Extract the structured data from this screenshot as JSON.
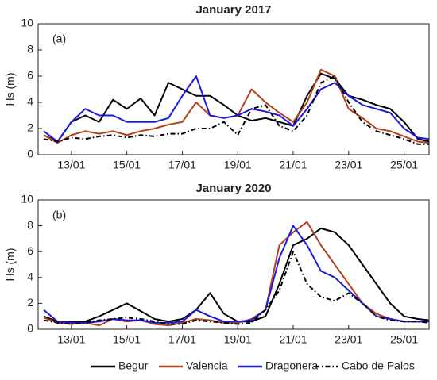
{
  "chart_data": [
    {
      "type": "line",
      "title": "January 2017",
      "annotation": "(a)",
      "y_label": "Hs (m)",
      "x": [
        12,
        12.5,
        13,
        13.5,
        14,
        14.5,
        15,
        15.5,
        16,
        16.5,
        17,
        17.5,
        18,
        18.5,
        19,
        19.5,
        20,
        20.5,
        21,
        21.5,
        22,
        22.5,
        23,
        23.5,
        24,
        24.5,
        25,
        25.5,
        25.9
      ],
      "xlim": [
        11.8,
        25.9
      ],
      "xticks": [
        {
          "value": 13,
          "label": "13/01"
        },
        {
          "value": 15,
          "label": "15/01"
        },
        {
          "value": 17,
          "label": "17/01"
        },
        {
          "value": 19,
          "label": "19/01"
        },
        {
          "value": 21,
          "label": "21/01"
        },
        {
          "value": 23,
          "label": "23/01"
        },
        {
          "value": 25,
          "label": "25/01"
        }
      ],
      "ylim": [
        0,
        10
      ],
      "yticks": [
        0,
        2,
        4,
        6,
        8,
        10
      ],
      "series": [
        {
          "name": "Begur",
          "color": "#000000",
          "linestyle": "solid",
          "values": [
            1.5,
            1.0,
            2.5,
            3.0,
            2.5,
            4.2,
            3.5,
            4.3,
            3.0,
            5.5,
            5.0,
            4.5,
            4.5,
            3.8,
            3.0,
            2.6,
            2.8,
            2.5,
            2.2,
            4.5,
            6.2,
            5.8,
            4.5,
            4.2,
            3.8,
            3.5,
            2.5,
            1.2,
            1.0
          ]
        },
        {
          "name": "Valencia",
          "color": "#b5401c",
          "linestyle": "solid",
          "values": [
            1.5,
            0.9,
            1.5,
            1.8,
            1.6,
            1.8,
            1.5,
            1.8,
            2.0,
            2.3,
            2.5,
            4.0,
            3.0,
            2.8,
            3.0,
            5.0,
            4.0,
            3.2,
            2.5,
            4.0,
            6.5,
            6.0,
            3.5,
            2.8,
            2.0,
            1.8,
            1.4,
            1.0,
            0.9
          ]
        },
        {
          "name": "Dragonera",
          "color": "#1a1ae0",
          "linestyle": "solid",
          "values": [
            1.8,
            1.0,
            2.5,
            3.5,
            3.0,
            3.0,
            2.5,
            2.5,
            2.5,
            2.8,
            4.5,
            6.0,
            3.0,
            2.8,
            3.0,
            3.5,
            3.3,
            3.0,
            2.2,
            3.5,
            5.0,
            5.5,
            4.5,
            3.8,
            3.5,
            3.2,
            2.0,
            1.3,
            1.2
          ]
        },
        {
          "name": "Cabo de Palos",
          "color": "#000000",
          "linestyle": "dash-dot",
          "values": [
            1.2,
            1.0,
            1.3,
            1.2,
            1.4,
            1.5,
            1.3,
            1.5,
            1.4,
            1.6,
            1.6,
            2.0,
            2.0,
            2.5,
            1.5,
            3.5,
            3.8,
            2.2,
            1.8,
            3.0,
            5.5,
            6.0,
            4.0,
            2.5,
            1.8,
            1.5,
            1.2,
            0.8,
            0.8
          ]
        }
      ]
    },
    {
      "type": "line",
      "title": "January 2020",
      "annotation": "(b)",
      "y_label": "Hs (m)",
      "x": [
        12,
        12.5,
        13,
        13.5,
        14,
        14.5,
        15,
        15.5,
        16,
        16.5,
        17,
        17.5,
        18,
        18.5,
        19,
        19.5,
        20,
        20.5,
        21,
        21.5,
        22,
        22.5,
        23,
        23.5,
        24,
        24.5,
        25,
        25.5,
        25.9
      ],
      "xlim": [
        11.8,
        25.9
      ],
      "xticks": [
        {
          "value": 13,
          "label": "13/01"
        },
        {
          "value": 15,
          "label": "15/01"
        },
        {
          "value": 17,
          "label": "17/01"
        },
        {
          "value": 19,
          "label": "19/01"
        },
        {
          "value": 21,
          "label": "21/01"
        },
        {
          "value": 23,
          "label": "23/01"
        },
        {
          "value": 25,
          "label": "25/01"
        }
      ],
      "ylim": [
        0,
        10
      ],
      "yticks": [
        0,
        2,
        4,
        6,
        8,
        10
      ],
      "series": [
        {
          "color": "#000000",
          "linestyle": "solid",
          "values": [
            1.0,
            0.6,
            0.6,
            0.6,
            1.0,
            1.5,
            2.0,
            1.4,
            0.8,
            0.6,
            0.8,
            1.5,
            2.8,
            1.2,
            0.6,
            0.6,
            1.0,
            3.5,
            6.5,
            7.0,
            7.8,
            7.5,
            6.5,
            5.0,
            3.5,
            2.0,
            1.0,
            0.8,
            0.7
          ]
        },
        {
          "color": "#b5401c",
          "linestyle": "solid",
          "values": [
            0.9,
            0.5,
            0.4,
            0.5,
            0.3,
            0.8,
            0.6,
            0.7,
            0.4,
            0.3,
            0.5,
            0.8,
            0.7,
            0.5,
            0.5,
            0.8,
            1.5,
            6.5,
            7.5,
            8.3,
            6.5,
            5.0,
            3.5,
            2.0,
            1.2,
            0.8,
            0.6,
            0.6,
            0.6
          ]
        },
        {
          "color": "#1a1ae0",
          "linestyle": "solid",
          "values": [
            1.5,
            0.6,
            0.5,
            0.5,
            0.6,
            0.8,
            0.7,
            0.7,
            0.5,
            0.5,
            0.6,
            1.5,
            1.0,
            0.6,
            0.6,
            0.7,
            1.5,
            5.5,
            8.0,
            6.5,
            4.5,
            4.0,
            3.0,
            2.0,
            1.0,
            0.8,
            0.6,
            0.6,
            0.6
          ]
        },
        {
          "color": "#000000",
          "linestyle": "dash-dot",
          "values": [
            0.7,
            0.5,
            0.4,
            0.5,
            0.7,
            0.8,
            0.9,
            0.8,
            0.6,
            0.4,
            0.4,
            0.7,
            0.6,
            0.5,
            0.4,
            0.5,
            1.5,
            3.0,
            6.0,
            3.5,
            2.5,
            2.2,
            2.8,
            2.0,
            1.0,
            0.7,
            0.6,
            0.6,
            0.5
          ]
        }
      ]
    }
  ]
}
